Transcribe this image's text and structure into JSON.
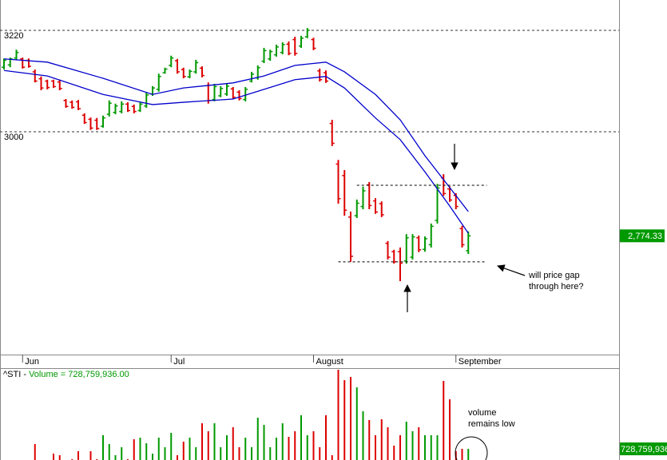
{
  "chart_data": {
    "type": "ohlc",
    "ticker_label": "^STI - ",
    "categories": [
      null,
      null,
      null,
      "Jun",
      null,
      null,
      null,
      null,
      null,
      null,
      null,
      null,
      null,
      null,
      null,
      null,
      null,
      null,
      null,
      null,
      null,
      null,
      null,
      null,
      null,
      null,
      null,
      "Jul",
      null,
      null,
      null,
      null,
      null,
      null,
      null,
      null,
      null,
      null,
      null,
      null,
      null,
      null,
      null,
      null,
      null,
      null,
      null,
      null,
      null,
      null,
      "August",
      null,
      null,
      null,
      null,
      null,
      null,
      null,
      null,
      null,
      null,
      null,
      null,
      null,
      null,
      null,
      null,
      null,
      null,
      null,
      null,
      null,
      null,
      "September",
      null,
      null
    ],
    "high": [
      3159,
      3161,
      3178,
      3161,
      3159,
      3135,
      3120,
      3113,
      3113,
      3113,
      3071,
      3068,
      3069,
      3040,
      3031,
      3030,
      3035,
      3068,
      3061,
      3066,
      3064,
      3059,
      3064,
      3085,
      3099,
      3126,
      3139,
      3165,
      3158,
      3139,
      3135,
      3156,
      3142,
      3107,
      3104,
      3099,
      3104,
      3097,
      3090,
      3097,
      3130,
      3144,
      3182,
      3178,
      3189,
      3194,
      3196,
      3206,
      3208,
      3225,
      3204,
      3137,
      3133,
      3026,
      2939,
      2917,
      2827,
      2853,
      2881,
      2891,
      2856,
      2849,
      2763,
      2744,
      2749,
      2778,
      2778,
      2775,
      2773,
      2801,
      2887,
      2908,
      2882,
      2867,
      2796,
      2784
    ],
    "low": [
      3135,
      3140,
      3156,
      3137,
      3139,
      3107,
      3090,
      3092,
      3095,
      3090,
      3052,
      3050,
      3047,
      3017,
      3004,
      3004,
      3009,
      3033,
      3038,
      3040,
      3043,
      3040,
      3043,
      3052,
      3078,
      3087,
      3126,
      3140,
      3126,
      3116,
      3116,
      3126,
      3118,
      3061,
      3066,
      3075,
      3078,
      3071,
      3068,
      3066,
      3107,
      3113,
      3149,
      3154,
      3163,
      3168,
      3166,
      3165,
      3182,
      3203,
      3177,
      3109,
      3106,
      2969,
      2844,
      2818,
      2718,
      2813,
      2832,
      2832,
      2822,
      2815,
      2723,
      2714,
      2676,
      2714,
      2723,
      2739,
      2740,
      2749,
      2801,
      2861,
      2848,
      2832,
      2749,
      2735
    ],
    "open": [
      3140,
      3145,
      3160,
      3158,
      3155,
      3130,
      3115,
      3110,
      3110,
      3108,
      3068,
      3064,
      3065,
      3036,
      3027,
      3025,
      3012,
      3038,
      3042,
      3044,
      3060,
      3055,
      3046,
      3056,
      3082,
      3092,
      3128,
      3144,
      3154,
      3135,
      3119,
      3130,
      3138,
      3100,
      3070,
      3078,
      3082,
      3093,
      3086,
      3070,
      3110,
      3117,
      3153,
      3158,
      3167,
      3172,
      3190,
      3200,
      3186,
      3206,
      3200,
      3132,
      3128,
      3018,
      2930,
      2905,
      2815,
      2818,
      2838,
      2885,
      2850,
      2844,
      2758,
      2740,
      2740,
      2720,
      2728,
      2770,
      2745,
      2755,
      2808,
      2900,
      2876,
      2862,
      2790,
      2742
    ],
    "close": [
      3155,
      3158,
      3172,
      3140,
      3142,
      3110,
      3095,
      3096,
      3098,
      3094,
      3055,
      3053,
      3050,
      3020,
      3008,
      3007,
      3030,
      3062,
      3056,
      3060,
      3046,
      3044,
      3060,
      3080,
      3095,
      3120,
      3136,
      3160,
      3130,
      3120,
      3131,
      3150,
      3122,
      3068,
      3098,
      3094,
      3099,
      3075,
      3072,
      3092,
      3125,
      3139,
      3176,
      3174,
      3184,
      3189,
      3170,
      3170,
      3203,
      3220,
      3181,
      3113,
      3110,
      2975,
      2855,
      2830,
      2730,
      2845,
      2872,
      2840,
      2826,
      2820,
      2728,
      2718,
      2715,
      2770,
      2772,
      2744,
      2768,
      2795,
      2878,
      2866,
      2852,
      2838,
      2755,
      2774.33
    ],
    "up_color": "#009900",
    "down_color": "#dd0000",
    "last_price": {
      "value": 2774.33,
      "label": "2,774.33"
    },
    "ylim": [
      2518.5,
      3285.8
    ],
    "yticks": [
      3000,
      3220
    ],
    "grid": true,
    "bands": [
      {
        "color": "#0000cc",
        "x": [
          0,
          7,
          16,
          24,
          29,
          37,
          42,
          47,
          52,
          55,
          60,
          64,
          68,
          72,
          75
        ],
        "values": [
          3158,
          3151,
          3116,
          3081,
          3095,
          3106,
          3121,
          3144,
          3151,
          3130,
          3081,
          3026,
          2948,
          2879,
          2827
        ]
      },
      {
        "color": "#0000cc",
        "x": [
          0,
          7,
          16,
          24,
          29,
          37,
          42,
          47,
          52,
          55,
          60,
          64,
          68,
          72,
          75
        ],
        "values": [
          3133,
          3121,
          3081,
          3059,
          3064,
          3071,
          3092,
          3113,
          3120,
          3095,
          3030,
          2983,
          2913,
          2839,
          2780
        ]
      }
    ],
    "levels": [
      {
        "value": 2884,
        "x": [
          57,
          78
        ]
      },
      {
        "value": 2718,
        "x": [
          54,
          78
        ]
      }
    ],
    "price_note": [
      "will price gap",
      "through here?"
    ],
    "volume": {
      "name": "Volume = ",
      "values": [
        288000000,
        288000000,
        288000000,
        288000000,
        288000000,
        845000000,
        288000000,
        288000000,
        614000000,
        576000000,
        288000000,
        480000000,
        672000000,
        384000000,
        672000000,
        480000000,
        1056000000,
        845000000,
        576000000,
        768000000,
        480000000,
        960000000,
        998000000,
        864000000,
        614000000,
        998000000,
        768000000,
        1114000000,
        576000000,
        902000000,
        998000000,
        768000000,
        1344000000,
        1152000000,
        1344000000,
        768000000,
        1056000000,
        1248000000,
        768000000,
        998000000,
        768000000,
        1478000000,
        1306000000,
        768000000,
        998000000,
        1344000000,
        1018000000,
        1152000000,
        1536000000,
        1056000000,
        1152000000,
        768000000,
        1536000000,
        576000000,
        2630000000,
        2381000000,
        2458000000,
        2208000000,
        1632000000,
        1421000000,
        1056000000,
        1440000000,
        1248000000,
        806000000,
        1056000000,
        1382000000,
        1152000000,
        1248000000,
        1056000000,
        1056000000,
        1056000000,
        2362000000,
        1920000000,
        672000000,
        730000000,
        728759936
      ],
      "ylim": [
        0,
        2650000000
      ],
      "readout": {
        "value": 728759936,
        "label": "728,759,936.00"
      },
      "note": [
        "volume",
        "remains low"
      ]
    }
  }
}
